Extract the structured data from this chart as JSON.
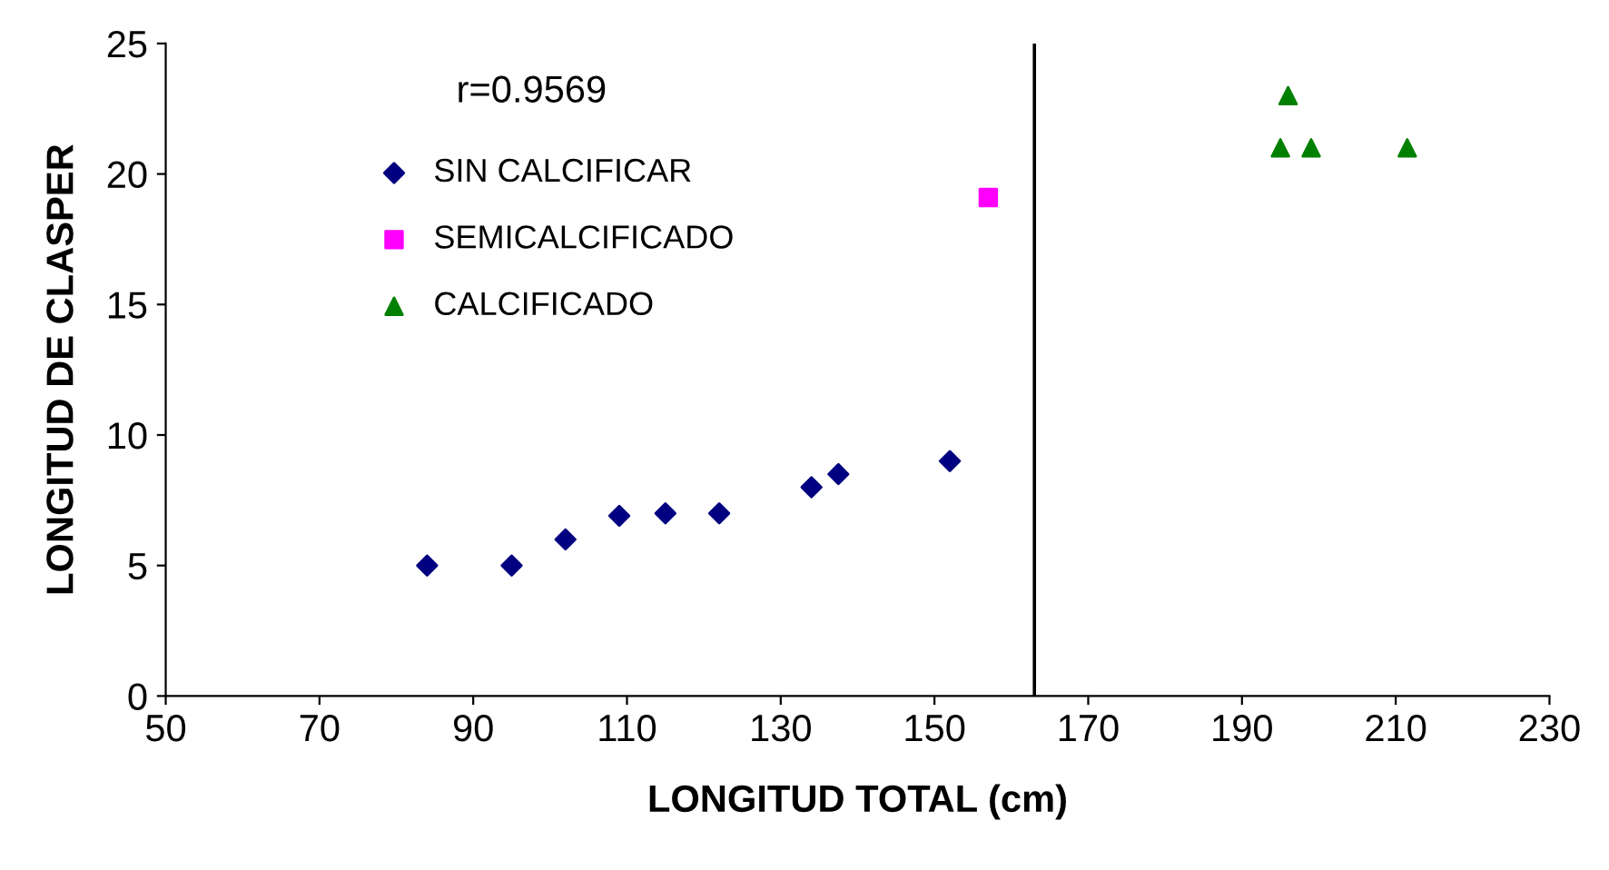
{
  "chart_data": {
    "type": "scatter",
    "xlabel": "LONGITUD TOTAL (cm)",
    "ylabel": "LONGITUD DE CLASPER",
    "series": [
      {
        "name": "SIN CALCIFICAR",
        "color": "#000080",
        "marker": "diamond",
        "x": [
          84,
          95,
          102,
          109,
          115,
          122,
          134,
          137.5,
          152
        ],
        "values": [
          5,
          5,
          6,
          6.9,
          7,
          7,
          8,
          8.5,
          9
        ]
      },
      {
        "name": "SEMICALCIFICADO",
        "color": "#ff00ff",
        "marker": "square",
        "x": [
          157
        ],
        "values": [
          19.1
        ]
      },
      {
        "name": "CALCIFICADO",
        "color": "#008000",
        "marker": "triangle",
        "x": [
          195,
          196,
          199,
          211.5
        ],
        "values": [
          21,
          23,
          21,
          21
        ]
      }
    ],
    "xlim": [
      50,
      230
    ],
    "xticks": [
      50,
      70,
      90,
      110,
      130,
      150,
      170,
      190,
      210,
      230
    ],
    "ylim": [
      0,
      25
    ],
    "yticks": [
      0,
      5,
      10,
      15,
      20,
      25
    ],
    "ref_lines": [
      {
        "axis": "x",
        "value": 163,
        "color": "#000000"
      }
    ],
    "annotations": [
      "r=0.9569"
    ],
    "legend": "top left",
    "grid": false
  }
}
